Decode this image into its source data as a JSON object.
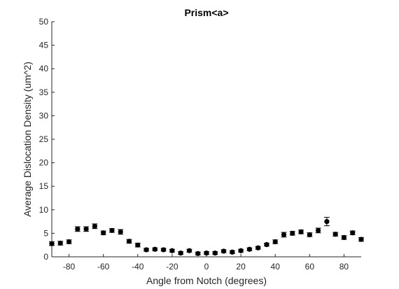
{
  "chart_data": {
    "type": "scatter",
    "title": "Prism<a>",
    "xlabel": "Angle from Notch (degrees)",
    "ylabel": "Average Dislocation Density (um^2)",
    "xlim": [
      -90,
      90
    ],
    "ylim": [
      0,
      50
    ],
    "xticks": [
      -80,
      -60,
      -40,
      -20,
      0,
      20,
      40,
      60,
      80
    ],
    "yticks": [
      0,
      5,
      10,
      15,
      20,
      25,
      30,
      35,
      40,
      45,
      50
    ],
    "grid": false,
    "marker_color": "#000000",
    "x": [
      -90,
      -85,
      -80,
      -75,
      -70,
      -65,
      -60,
      -55,
      -50,
      -45,
      -40,
      -35,
      -30,
      -25,
      -20,
      -15,
      -10,
      -5,
      0,
      5,
      10,
      15,
      20,
      25,
      30,
      35,
      40,
      45,
      50,
      55,
      60,
      65,
      70,
      75,
      80,
      85,
      90
    ],
    "y": [
      2.8,
      2.9,
      3.2,
      5.9,
      5.9,
      6.5,
      5.1,
      5.6,
      5.3,
      3.3,
      2.5,
      1.5,
      1.6,
      1.5,
      1.3,
      0.8,
      1.3,
      0.7,
      0.8,
      0.8,
      1.2,
      1.0,
      1.3,
      1.6,
      1.9,
      2.6,
      3.2,
      4.7,
      5.0,
      5.3,
      4.7,
      5.6,
      7.5,
      4.8,
      4.1,
      5.1,
      3.7
    ],
    "error": [
      0.4,
      0.4,
      0.4,
      0.5,
      0.5,
      0.5,
      0.4,
      0.4,
      0.5,
      0.4,
      0.4,
      0.3,
      0.3,
      0.3,
      0.3,
      0.3,
      0.3,
      0.3,
      0.3,
      0.3,
      0.3,
      0.3,
      0.3,
      0.3,
      0.3,
      0.3,
      0.4,
      0.5,
      0.4,
      0.4,
      0.4,
      0.5,
      0.9,
      0.4,
      0.4,
      0.4,
      0.4
    ]
  }
}
